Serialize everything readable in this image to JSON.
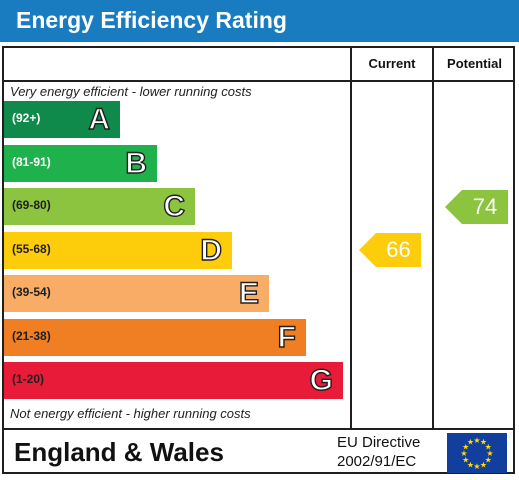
{
  "chart_data": {
    "type": "bar",
    "title": "Energy Efficiency Rating",
    "column_headers": [
      "Current",
      "Potential"
    ],
    "top_note": "Very energy efficient - lower running costs",
    "bottom_note": "Not energy efficient - higher running costs",
    "bands": [
      {
        "range": "(92+)",
        "letter": "A",
        "color": "#0f8a4a",
        "text_color": "#ffffff"
      },
      {
        "range": "(81-91)",
        "letter": "B",
        "color": "#1fb14c",
        "text_color": "#ffffff"
      },
      {
        "range": "(69-80)",
        "letter": "C",
        "color": "#8cc43f",
        "text_color": "#1f1f1f"
      },
      {
        "range": "(55-68)",
        "letter": "D",
        "color": "#fdcc0a",
        "text_color": "#1f1f1f"
      },
      {
        "range": "(39-54)",
        "letter": "E",
        "color": "#f8ac65",
        "text_color": "#1f1f1f"
      },
      {
        "range": "(21-38)",
        "letter": "F",
        "color": "#f07e22",
        "text_color": "#1f1f1f"
      },
      {
        "range": "(1-20)",
        "letter": "G",
        "color": "#e81c38",
        "text_color": "#1f1f1f"
      }
    ],
    "current": {
      "value": 66,
      "band": "D",
      "color": "#fdcc0a"
    },
    "potential": {
      "value": 74,
      "band": "C",
      "color": "#8cc43f"
    },
    "footer": {
      "region": "England & Wales",
      "directive_line1": "EU Directive",
      "directive_line2": "2002/91/EC"
    }
  }
}
